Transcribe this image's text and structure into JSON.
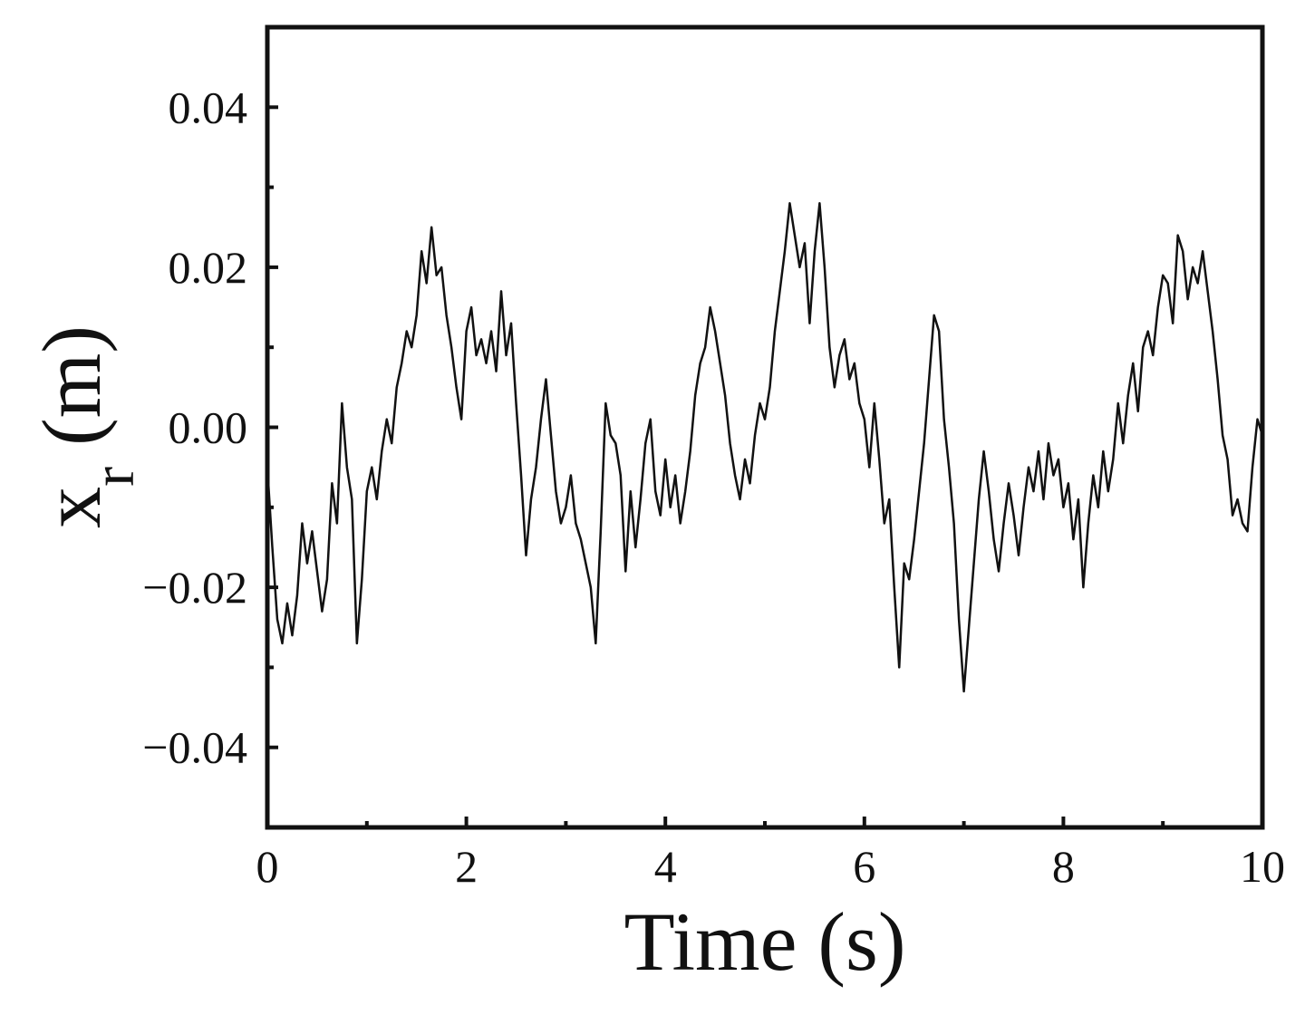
{
  "chart_data": {
    "type": "line",
    "xlabel": "Time (s)",
    "ylabel": [
      "x",
      "r",
      " (m)"
    ],
    "xlim": [
      0,
      10
    ],
    "ylim": [
      -0.05,
      0.05
    ],
    "xticks": [
      0,
      2,
      4,
      6,
      8,
      10
    ],
    "xminorticks": [
      1,
      3,
      5,
      7,
      9
    ],
    "yticks": [
      {
        "value": -0.04,
        "label": "−0.04"
      },
      {
        "value": -0.02,
        "label": "−0.02"
      },
      {
        "value": 0,
        "label": "0.00"
      },
      0.02,
      0.04
    ],
    "yminorticks": [
      -0.03,
      -0.01,
      0.01,
      0.03
    ],
    "color": "#111111",
    "x": [
      0,
      0.05,
      0.1,
      0.15,
      0.2,
      0.25,
      0.3,
      0.35,
      0.4,
      0.45,
      0.5,
      0.55,
      0.6,
      0.65,
      0.7,
      0.75,
      0.8,
      0.85,
      0.9,
      0.95,
      1,
      1.05,
      1.1,
      1.15,
      1.2,
      1.25,
      1.3,
      1.35,
      1.4,
      1.45,
      1.5,
      1.55,
      1.6,
      1.65,
      1.7,
      1.75,
      1.8,
      1.85,
      1.9,
      1.95,
      2,
      2.05,
      2.1,
      2.15,
      2.2,
      2.25,
      2.3,
      2.35,
      2.4,
      2.45,
      2.5,
      2.55,
      2.6,
      2.65,
      2.7,
      2.75,
      2.8,
      2.85,
      2.9,
      2.95,
      3,
      3.05,
      3.1,
      3.15,
      3.2,
      3.25,
      3.3,
      3.35,
      3.4,
      3.45,
      3.5,
      3.55,
      3.6,
      3.65,
      3.7,
      3.75,
      3.8,
      3.85,
      3.9,
      3.95,
      4,
      4.05,
      4.1,
      4.15,
      4.2,
      4.25,
      4.3,
      4.35,
      4.4,
      4.45,
      4.5,
      4.55,
      4.6,
      4.65,
      4.7,
      4.75,
      4.8,
      4.85,
      4.9,
      4.95,
      5,
      5.05,
      5.1,
      5.15,
      5.2,
      5.25,
      5.3,
      5.35,
      5.4,
      5.45,
      5.5,
      5.55,
      5.6,
      5.65,
      5.7,
      5.75,
      5.8,
      5.85,
      5.9,
      5.95,
      6,
      6.05,
      6.1,
      6.15,
      6.2,
      6.25,
      6.3,
      6.35,
      6.4,
      6.45,
      6.5,
      6.55,
      6.6,
      6.65,
      6.7,
      6.75,
      6.8,
      6.85,
      6.9,
      6.95,
      7,
      7.05,
      7.1,
      7.15,
      7.2,
      7.25,
      7.3,
      7.35,
      7.4,
      7.45,
      7.5,
      7.55,
      7.6,
      7.65,
      7.7,
      7.75,
      7.8,
      7.85,
      7.9,
      7.95,
      8,
      8.05,
      8.1,
      8.15,
      8.2,
      8.25,
      8.3,
      8.35,
      8.4,
      8.45,
      8.5,
      8.55,
      8.6,
      8.65,
      8.7,
      8.75,
      8.8,
      8.85,
      8.9,
      8.95,
      9,
      9.05,
      9.1,
      9.15,
      9.2,
      9.25,
      9.3,
      9.35,
      9.4,
      9.45,
      9.5,
      9.55,
      9.6,
      9.65,
      9.7,
      9.75,
      9.8,
      9.85,
      9.9,
      9.95,
      10
    ],
    "values": [
      -0.005,
      -0.015,
      -0.024,
      -0.027,
      -0.022,
      -0.026,
      -0.021,
      -0.012,
      -0.017,
      -0.013,
      -0.018,
      -0.023,
      -0.019,
      -0.007,
      -0.012,
      0.003,
      -0.005,
      -0.009,
      -0.027,
      -0.019,
      -0.008,
      -0.005,
      -0.009,
      -0.003,
      0.001,
      -0.002,
      0.005,
      0.008,
      0.012,
      0.01,
      0.014,
      0.022,
      0.018,
      0.025,
      0.019,
      0.02,
      0.014,
      0.01,
      0.005,
      0.001,
      0.012,
      0.015,
      0.009,
      0.011,
      0.008,
      0.012,
      0.007,
      0.017,
      0.009,
      0.013,
      0.003,
      -0.006,
      -0.016,
      -0.009,
      -0.005,
      0.001,
      0.006,
      -0.001,
      -0.008,
      -0.012,
      -0.01,
      -0.006,
      -0.012,
      -0.014,
      -0.017,
      -0.02,
      -0.027,
      -0.013,
      0.003,
      -0.001,
      -0.002,
      -0.006,
      -0.018,
      -0.008,
      -0.015,
      -0.009,
      -0.002,
      0.001,
      -0.008,
      -0.011,
      -0.004,
      -0.01,
      -0.006,
      -0.012,
      -0.008,
      -0.003,
      0.004,
      0.008,
      0.01,
      0.015,
      0.012,
      0.008,
      0.004,
      -0.002,
      -0.006,
      -0.009,
      -0.004,
      -0.007,
      -0.001,
      0.003,
      0.001,
      0.005,
      0.012,
      0.017,
      0.022,
      0.028,
      0.024,
      0.02,
      0.023,
      0.013,
      0.022,
      0.028,
      0.02,
      0.01,
      0.005,
      0.009,
      0.011,
      0.006,
      0.008,
      0.003,
      0.001,
      -0.005,
      0.003,
      -0.004,
      -0.012,
      -0.009,
      -0.02,
      -0.03,
      -0.017,
      -0.019,
      -0.014,
      -0.008,
      -0.002,
      0.006,
      0.014,
      0.012,
      0.001,
      -0.005,
      -0.012,
      -0.024,
      -0.033,
      -0.025,
      -0.017,
      -0.009,
      -0.003,
      -0.008,
      -0.014,
      -0.018,
      -0.012,
      -0.007,
      -0.011,
      -0.016,
      -0.01,
      -0.005,
      -0.008,
      -0.003,
      -0.009,
      -0.002,
      -0.006,
      -0.004,
      -0.01,
      -0.007,
      -0.014,
      -0.009,
      -0.02,
      -0.012,
      -0.006,
      -0.01,
      -0.003,
      -0.008,
      -0.004,
      0.003,
      -0.002,
      0.004,
      0.008,
      0.002,
      0.01,
      0.012,
      0.009,
      0.015,
      0.019,
      0.018,
      0.013,
      0.024,
      0.022,
      0.016,
      0.02,
      0.018,
      0.022,
      0.017,
      0.012,
      0.006,
      -0.001,
      -0.004,
      -0.011,
      -0.009,
      -0.012,
      -0.013,
      -0.005,
      0.001,
      -0.001
    ]
  }
}
